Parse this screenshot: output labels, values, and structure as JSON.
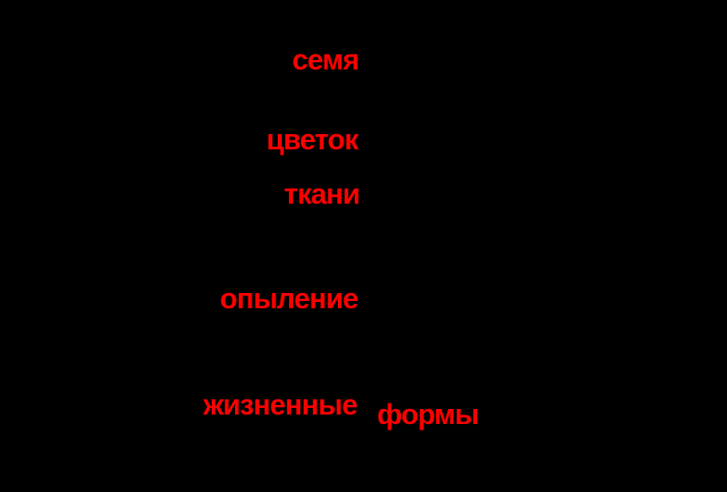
{
  "canvas": {
    "background_color": "#000000",
    "label_color": "#ff0000",
    "description": "Black diagram canvas with red trait annotations (tree line art not visible)"
  },
  "labels": {
    "seed": "семя",
    "flower": "цветок",
    "tissues": "ткани",
    "pollination": "опыление",
    "life": "жизненные",
    "forms": "формы"
  }
}
